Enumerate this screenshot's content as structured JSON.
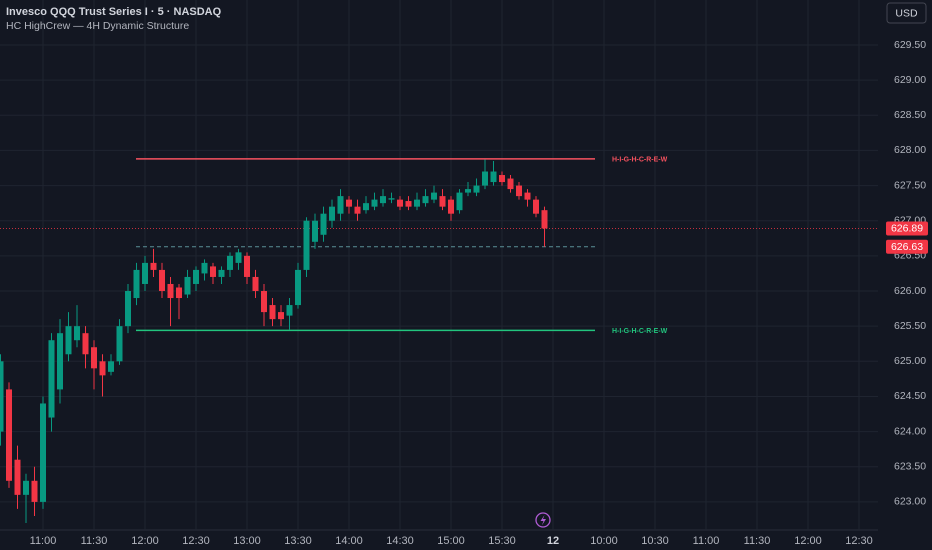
{
  "chart_data": {
    "type": "candlestick",
    "title": "Invesco QQQ Trust Series I · 5 · NASDAQ",
    "subtitle": "HC HighCrew — 4H Dynamic Structure",
    "currency": "USD",
    "up_color": "#089981",
    "down_color": "#f23645",
    "grid": true,
    "categories": [
      null,
      null,
      null,
      null,
      null,
      "11:00",
      null,
      null,
      null,
      null,
      null,
      "11:30",
      null,
      null,
      null,
      null,
      null,
      "12:00",
      null,
      null,
      null,
      null,
      null,
      "12:30",
      null,
      null,
      null,
      null,
      null,
      "13:00",
      null,
      null,
      null,
      null,
      null,
      "13:30",
      null,
      null,
      null,
      null,
      null,
      "14:00",
      null,
      null,
      null,
      null,
      null,
      "14:30",
      null,
      null,
      null,
      null,
      null,
      "15:00",
      null,
      null,
      null,
      null,
      null,
      "15:30",
      null,
      null,
      null,
      null,
      null,
      "12",
      null,
      null,
      null,
      null,
      null,
      "10:00",
      null,
      null,
      null,
      null,
      null,
      "10:30",
      null,
      null,
      null,
      null,
      null,
      "11:00",
      null,
      null,
      null,
      null,
      null,
      "11:30",
      null,
      null,
      null,
      null,
      null,
      "12:00",
      null,
      null,
      null,
      null,
      null,
      "12:30",
      null,
      null
    ],
    "open": [
      624.0,
      624.6,
      623.6,
      623.1,
      623.3,
      623.0,
      624.2,
      624.6,
      625.1,
      625.3,
      625.4,
      625.2,
      625.0,
      624.85,
      625.0,
      625.5,
      625.9,
      626.1,
      626.4,
      626.3,
      626.1,
      626.05,
      625.95,
      626.1,
      626.25,
      626.35,
      626.2,
      626.3,
      626.4,
      626.5,
      626.2,
      626.0,
      625.8,
      625.7,
      625.65,
      625.8,
      626.3,
      626.7,
      626.8,
      627.0,
      627.1,
      627.3,
      627.2,
      627.15,
      627.2,
      627.25,
      627.3,
      627.3,
      627.28,
      627.2,
      627.25,
      627.3,
      627.35,
      627.3,
      627.15,
      627.4,
      627.4,
      627.5,
      627.55,
      627.65,
      627.6,
      627.5,
      627.4,
      627.3,
      627.15,
      null,
      null,
      null,
      null,
      null,
      null,
      null,
      null,
      null,
      null,
      null,
      null,
      null,
      null,
      null,
      null,
      null,
      null,
      null,
      null,
      null,
      null,
      null,
      null,
      null,
      null,
      null,
      null,
      null,
      null,
      null,
      null,
      null,
      null,
      null,
      null,
      null,
      null,
      null
    ],
    "high": [
      625.1,
      624.7,
      623.8,
      623.4,
      623.5,
      624.5,
      625.4,
      625.6,
      625.7,
      625.8,
      625.5,
      625.3,
      625.1,
      625.1,
      625.6,
      626.1,
      626.4,
      626.5,
      626.6,
      626.4,
      626.2,
      626.1,
      626.3,
      626.35,
      626.45,
      626.4,
      626.35,
      626.55,
      626.6,
      626.55,
      626.3,
      626.1,
      625.9,
      625.8,
      625.9,
      626.4,
      627.05,
      627.1,
      627.2,
      627.3,
      627.45,
      627.35,
      627.3,
      627.35,
      627.4,
      627.45,
      627.4,
      627.35,
      627.35,
      627.4,
      627.45,
      627.5,
      627.45,
      627.35,
      627.45,
      627.55,
      627.6,
      627.87,
      627.85,
      627.7,
      627.65,
      627.55,
      627.45,
      627.35,
      627.2,
      null,
      null,
      null,
      null,
      null,
      null,
      null,
      null,
      null,
      null,
      null,
      null,
      null,
      null,
      null,
      null,
      null,
      null,
      null,
      null,
      null,
      null,
      null,
      null,
      null,
      null,
      null,
      null,
      null,
      null,
      null,
      null,
      null,
      null,
      null,
      null,
      null,
      null,
      null
    ],
    "low": [
      623.8,
      623.2,
      622.9,
      622.7,
      622.8,
      622.9,
      624.0,
      624.4,
      625.0,
      625.2,
      624.9,
      624.6,
      624.5,
      624.8,
      624.95,
      625.4,
      625.8,
      626.0,
      626.2,
      625.9,
      625.5,
      625.6,
      625.9,
      626.0,
      626.15,
      626.1,
      626.1,
      626.2,
      626.3,
      626.1,
      625.9,
      625.5,
      625.5,
      625.5,
      625.45,
      625.75,
      626.2,
      626.6,
      626.7,
      626.9,
      627.0,
      627.1,
      627.0,
      627.1,
      627.15,
      627.2,
      627.25,
      627.15,
      627.15,
      627.15,
      627.2,
      627.25,
      627.15,
      627.0,
      627.1,
      627.35,
      627.35,
      627.45,
      627.5,
      627.5,
      627.4,
      627.3,
      627.2,
      627.05,
      626.63,
      null,
      null,
      null,
      null,
      null,
      null,
      null,
      null,
      null,
      null,
      null,
      null,
      null,
      null,
      null,
      null,
      null,
      null,
      null,
      null,
      null,
      null,
      null,
      null,
      null,
      null,
      null,
      null,
      null,
      null,
      null,
      null,
      null,
      null,
      null,
      null,
      null,
      null,
      null
    ],
    "close": [
      625.0,
      623.3,
      623.1,
      623.3,
      623.0,
      624.4,
      625.3,
      625.4,
      625.5,
      625.5,
      625.1,
      624.9,
      624.8,
      625.0,
      625.5,
      626.0,
      626.3,
      626.4,
      626.3,
      626.0,
      625.9,
      625.9,
      626.2,
      626.3,
      626.4,
      626.2,
      626.3,
      626.5,
      626.55,
      626.2,
      626.0,
      625.7,
      625.6,
      625.6,
      625.8,
      626.3,
      627.0,
      627.0,
      627.1,
      627.2,
      627.35,
      627.2,
      627.1,
      627.25,
      627.3,
      627.35,
      627.32,
      627.2,
      627.2,
      627.3,
      627.35,
      627.4,
      627.2,
      627.1,
      627.4,
      627.45,
      627.5,
      627.7,
      627.7,
      627.55,
      627.45,
      627.35,
      627.3,
      627.1,
      626.89,
      null,
      null,
      null,
      null,
      null,
      null,
      null,
      null,
      null,
      null,
      null,
      null,
      null,
      null,
      null,
      null,
      null,
      null,
      null,
      null,
      null,
      null,
      null,
      null,
      null,
      null,
      null,
      null,
      null,
      null,
      null,
      null,
      null,
      null,
      null,
      null,
      null,
      null,
      null
    ],
    "ylim": [
      622.6,
      630.14
    ],
    "yticks": [
      {
        "value": 623.0,
        "label": "623.00"
      },
      {
        "value": 623.5,
        "label": "623.50"
      },
      {
        "value": 624.0,
        "label": "624.00"
      },
      {
        "value": 624.5,
        "label": "624.50"
      },
      {
        "value": 625.0,
        "label": "625.00"
      },
      {
        "value": 625.5,
        "label": "625.50"
      },
      {
        "value": 626.0,
        "label": "626.00"
      },
      {
        "value": 626.5,
        "label": "626.50"
      },
      {
        "value": 627.0,
        "label": "627.00"
      },
      {
        "value": 627.5,
        "label": "627.50"
      },
      {
        "value": 628.0,
        "label": "628.00"
      },
      {
        "value": 628.5,
        "label": "628.50"
      },
      {
        "value": 629.0,
        "label": "629.00"
      },
      {
        "value": 629.5,
        "label": "629.50"
      }
    ],
    "levels": [
      {
        "name": "H-I-G-H-C-R-E-W",
        "value": 627.88,
        "color": "#f7525f"
      },
      {
        "name": "H-I-G-H-C-R-E-W",
        "value": 625.44,
        "color": "#22c47e"
      }
    ],
    "price_lines": [
      {
        "value": 626.89,
        "color": "#f23645",
        "line_color": "#f23645",
        "style": "dotted"
      },
      {
        "value": 626.63,
        "color": "#f23645",
        "line_color": "#5b8f96",
        "style": "dashed"
      }
    ]
  }
}
